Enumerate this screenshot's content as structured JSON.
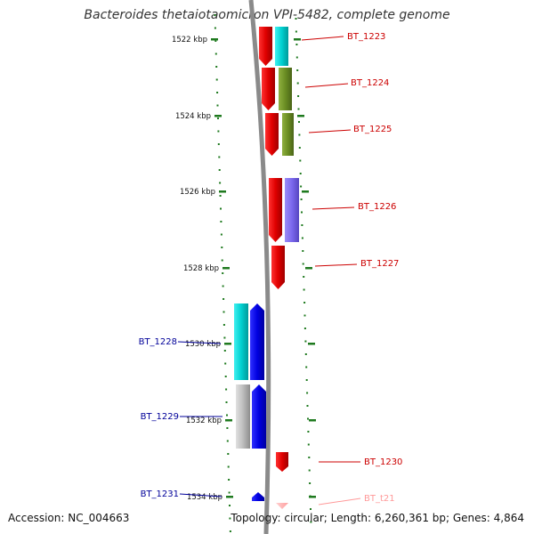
{
  "title": "Bacteroides thetaiotaomicron VPI-5482, complete genome",
  "accession_text": "Accession: NC_004663",
  "summary_text": "Topology: circular; Length: 6,260,361 bp; Genes: 4,864",
  "colors": {
    "backbone": "#8a8a8a",
    "tick": "#1f7a1f",
    "forward_label": "#cc0000",
    "reverse_label": "#000099",
    "trna_label": "#ff9999"
  },
  "ticks": [
    {
      "label": "1522 kbp"
    },
    {
      "label": "1524 kbp"
    },
    {
      "label": "1526 kbp"
    },
    {
      "label": "1528 kbp"
    },
    {
      "label": "1530 kbp"
    },
    {
      "label": "1532 kbp"
    },
    {
      "label": "1534 kbp"
    }
  ],
  "genes": [
    {
      "name": "BT_1223",
      "strand": "+",
      "cog_color": "#00e5e5"
    },
    {
      "name": "BT_1224",
      "strand": "+",
      "cog_color": "#6b8e23"
    },
    {
      "name": "BT_1225",
      "strand": "+",
      "cog_color": "#6b8e23"
    },
    {
      "name": "BT_1226",
      "strand": "+",
      "cog_color": "#7b68ee"
    },
    {
      "name": "BT_1227",
      "strand": "+",
      "cog_color": ""
    },
    {
      "name": "BT_1228",
      "strand": "-",
      "cog_color": "#00c8c8"
    },
    {
      "name": "BT_1229",
      "strand": "-",
      "cog_color": "#bdbdbd"
    },
    {
      "name": "BT_1230",
      "strand": "+",
      "cog_color": ""
    },
    {
      "name": "BT_1231",
      "strand": "-",
      "cog_color": ""
    },
    {
      "name": "BT_t21",
      "strand": "+",
      "cog_color": ""
    }
  ]
}
